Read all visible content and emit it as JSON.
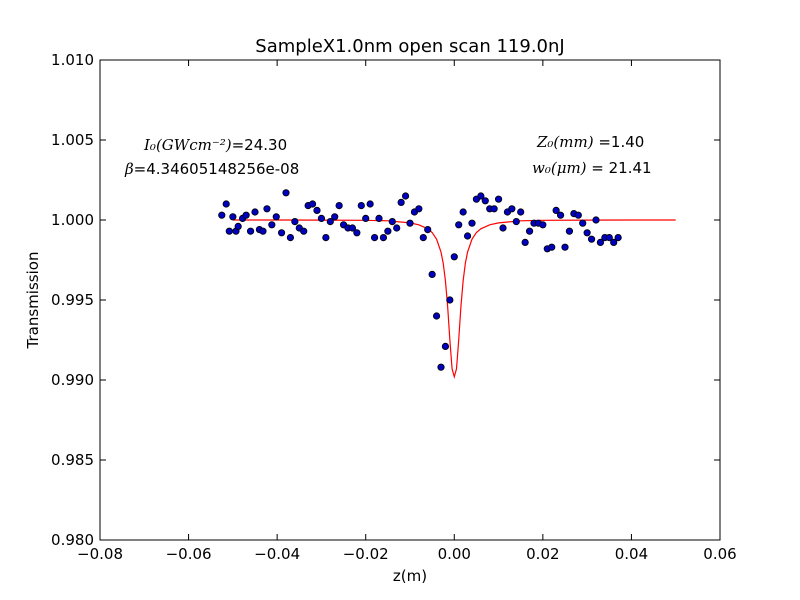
{
  "chart_data": {
    "type": "scatter",
    "title": "SampleX1.0nm open scan 119.0nJ",
    "xlabel": "z(m)",
    "ylabel": "Transmission",
    "xlim": [
      -0.08,
      0.06
    ],
    "ylim": [
      0.98,
      1.01
    ],
    "xticks": [
      -0.08,
      -0.06,
      -0.04,
      -0.02,
      0.0,
      0.02,
      0.04,
      0.06
    ],
    "xtick_labels": [
      "−0.08",
      "−0.06",
      "−0.04",
      "−0.02",
      "0.00",
      "0.02",
      "0.04",
      "0.06"
    ],
    "yticks": [
      0.98,
      0.985,
      0.99,
      0.995,
      1.0,
      1.005,
      1.01
    ],
    "ytick_labels": [
      "0.980",
      "0.985",
      "0.990",
      "0.995",
      "1.000",
      "1.005",
      "1.010"
    ],
    "grid": false,
    "colors": {
      "points_fill": "#0000bf",
      "points_edge": "#000000",
      "fit_line": "#ff0000"
    },
    "annotations": {
      "intensity_label": "I₀(GWcm⁻²)",
      "intensity_value": "=24.30",
      "beta_label": "β",
      "beta_value": "=4.34605148256e-08",
      "z0_label": "Z₀(mm)",
      "z0_value": " =1.40",
      "w0_label": "w₀(μm)",
      "w0_value": " = 21.41"
    },
    "series": [
      {
        "kind": "scatter",
        "x": [
          -0.0525,
          -0.0515,
          -0.0508,
          -0.05,
          -0.0493,
          -0.0488,
          -0.0478,
          -0.047,
          -0.046,
          -0.045,
          -0.044,
          -0.0432,
          -0.0423,
          -0.0412,
          -0.0402,
          -0.039,
          -0.038,
          -0.037,
          -0.036,
          -0.035,
          -0.034,
          -0.033,
          -0.032,
          -0.031,
          -0.03,
          -0.029,
          -0.028,
          -0.027,
          -0.026,
          -0.025,
          -0.024,
          -0.023,
          -0.022,
          -0.021,
          -0.02,
          -0.019,
          -0.018,
          -0.017,
          -0.016,
          -0.015,
          -0.014,
          -0.013,
          -0.012,
          -0.011,
          -0.01,
          -0.009,
          -0.008,
          -0.007,
          -0.006,
          -0.005,
          -0.004,
          -0.003,
          -0.002,
          -0.001,
          0.0,
          0.001,
          0.002,
          0.003,
          0.004,
          0.005,
          0.006,
          0.007,
          0.008,
          0.009,
          0.01,
          0.011,
          0.012,
          0.013,
          0.014,
          0.015,
          0.016,
          0.017,
          0.018,
          0.019,
          0.02,
          0.021,
          0.022,
          0.023,
          0.024,
          0.025,
          0.026,
          0.027,
          0.028,
          0.029,
          0.03,
          0.031,
          0.032,
          0.033,
          0.034,
          0.035,
          0.036,
          0.037
        ],
        "y": [
          1.0003,
          1.001,
          0.9993,
          1.0002,
          0.9993,
          0.9996,
          1.0001,
          1.0003,
          0.9993,
          1.0005,
          0.9994,
          0.9993,
          1.0007,
          0.9997,
          1.0002,
          0.9992,
          1.0017,
          0.9989,
          0.9999,
          0.9995,
          0.9993,
          1.0009,
          1.001,
          1.0006,
          1.0001,
          0.9989,
          0.9999,
          1.0002,
          1.0009,
          0.9997,
          0.9995,
          0.9995,
          0.9992,
          1.0009,
          1.0001,
          1.001,
          0.9989,
          1.0001,
          0.9989,
          0.9993,
          0.9999,
          0.9995,
          1.0011,
          1.0015,
          0.9998,
          1.0005,
          1.0007,
          0.9989,
          0.9994,
          0.9966,
          0.994,
          0.9908,
          0.9921,
          0.995,
          0.9977,
          0.9997,
          1.0005,
          0.999,
          0.9998,
          1.0013,
          1.0015,
          1.0012,
          1.0007,
          1.0007,
          1.0013,
          0.9995,
          1.0005,
          1.0007,
          0.9999,
          1.0005,
          0.9986,
          0.9993,
          0.9998,
          0.9998,
          0.9997,
          0.9982,
          0.9983,
          1.0006,
          1.0003,
          0.9983,
          0.9993,
          1.0004,
          1.0003,
          0.9998,
          0.9992,
          0.9988,
          1.0,
          0.9986,
          0.9989,
          0.9989,
          0.9986,
          0.9989
        ]
      },
      {
        "kind": "line",
        "x": [
          -0.05,
          -0.04,
          -0.03,
          -0.02,
          -0.015,
          -0.01,
          -0.008,
          -0.006,
          -0.005,
          -0.004,
          -0.003,
          -0.0025,
          -0.002,
          -0.0015,
          -0.001,
          -0.0005,
          0.0,
          0.0005,
          0.001,
          0.0015,
          0.002,
          0.0025,
          0.003,
          0.004,
          0.005,
          0.006,
          0.008,
          0.01,
          0.015,
          0.02,
          0.03,
          0.04,
          0.05
        ],
        "y": [
          1.0,
          1.0,
          0.99999,
          0.99998,
          0.99995,
          0.99982,
          0.9997,
          0.99945,
          0.99922,
          0.9988,
          0.998,
          0.9973,
          0.9962,
          0.9946,
          0.9925,
          0.9907,
          0.9902,
          0.9907,
          0.9925,
          0.9946,
          0.9962,
          0.9973,
          0.998,
          0.9988,
          0.99922,
          0.99945,
          0.9997,
          0.99982,
          0.99995,
          0.99998,
          0.99999,
          1.0,
          1.0
        ]
      }
    ]
  }
}
